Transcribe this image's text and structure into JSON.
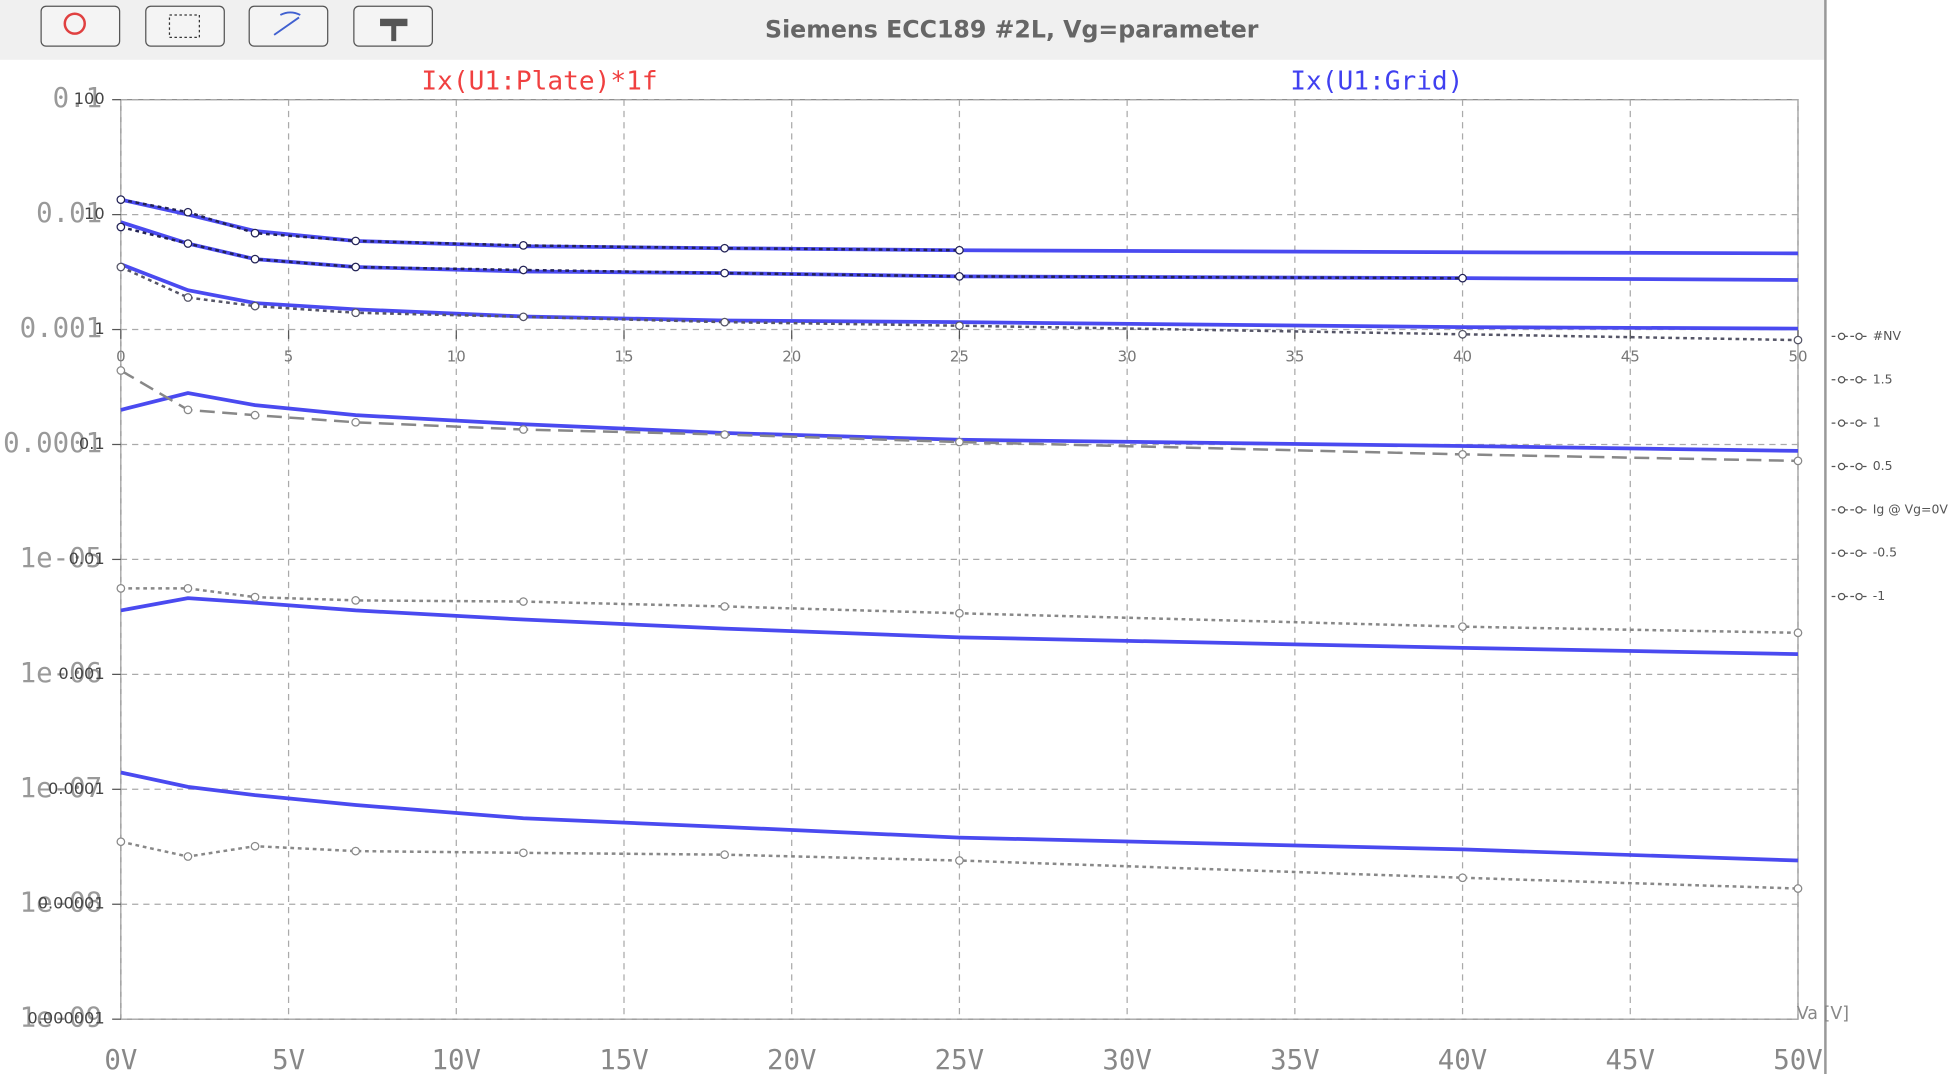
{
  "window": {
    "title": "Siemens ECC189 #2L, Vg=parameter"
  },
  "chart_data": {
    "type": "line",
    "trace_labels": [
      {
        "text": "Ix(U1:Plate)*1f",
        "color": "#f04040"
      },
      {
        "text": "Ix(U1:Grid)",
        "color": "#4040f0"
      }
    ],
    "x": [
      0,
      2,
      4,
      7,
      12,
      18,
      25,
      40,
      50
    ],
    "xlim": [
      0,
      50
    ],
    "xticks": [
      {
        "value": 0,
        "label": "0V"
      },
      {
        "value": 5,
        "label": "5V"
      },
      {
        "value": 10,
        "label": "10V"
      },
      {
        "value": 15,
        "label": "15V"
      },
      {
        "value": 20,
        "label": "20V"
      },
      {
        "value": 25,
        "label": "25V"
      },
      {
        "value": 30,
        "label": "30V"
      },
      {
        "value": 35,
        "label": "35V"
      },
      {
        "value": 40,
        "label": "40V"
      },
      {
        "value": 45,
        "label": "45V"
      },
      {
        "value": 50,
        "label": "50V"
      }
    ],
    "ylim": [
      1e-09,
      0.1
    ],
    "log_y": true,
    "yticks": [
      0.1,
      0.01,
      0.001,
      0.0001,
      {
        "value": 1e-05,
        "label": "1e-05"
      },
      {
        "value": 1e-06,
        "label": "1e-06"
      },
      {
        "value": 1e-07,
        "label": "1e-07"
      },
      {
        "value": 1e-08,
        "label": "1e-08"
      },
      {
        "value": 1e-09,
        "label": "1e-09"
      }
    ],
    "grid": true,
    "series": [
      {
        "color": "#4a4af0",
        "style": "solid",
        "values": [
          0.0135,
          0.01,
          0.0072,
          0.0059,
          0.0053,
          0.0051,
          0.0049,
          0.0047,
          0.0046
        ]
      },
      {
        "color": "#4a4af0",
        "style": "solid",
        "values": [
          0.0086,
          0.0056,
          0.0041,
          0.0035,
          0.0032,
          0.0031,
          0.0029,
          0.0028,
          0.0027
        ]
      },
      {
        "color": "#4a4af0",
        "style": "solid",
        "values": [
          0.0037,
          0.0022,
          0.0017,
          0.0015,
          0.0013,
          0.0012,
          0.00116,
          0.00105,
          0.00102
        ]
      },
      {
        "color": "#4a4af0",
        "style": "solid",
        "values": [
          0.0002,
          0.00028,
          0.00022,
          0.00018,
          0.00015,
          0.000126,
          0.00011,
          9.7e-05,
          8.8e-05
        ]
      },
      {
        "color": "#4a4af0",
        "style": "solid",
        "values": [
          3.6e-06,
          4.6e-06,
          4.2e-06,
          3.6e-06,
          3e-06,
          2.5e-06,
          2.1e-06,
          1.7e-06,
          1.5e-06
        ]
      },
      {
        "color": "#4a4af0",
        "style": "solid",
        "values": [
          1.4e-07,
          1.05e-07,
          8.9e-08,
          7.3e-08,
          5.6e-08,
          4.7e-08,
          3.8e-08,
          3e-08,
          2.4e-08
        ]
      },
      {
        "color": "#222255",
        "style": "dotted",
        "markers": true,
        "values": [
          0.0135,
          0.0105,
          0.0069,
          0.0059,
          0.0054,
          0.0051,
          0.0049,
          null,
          null
        ]
      },
      {
        "color": "#222255",
        "style": "dotted",
        "markers": true,
        "values": [
          0.0078,
          0.0056,
          0.0041,
          0.0035,
          0.0033,
          0.0031,
          0.0029,
          0.0028,
          null
        ]
      },
      {
        "color": "#555566",
        "style": "dotted",
        "markers": true,
        "values": [
          0.0035,
          0.0019,
          0.0016,
          0.0014,
          0.00129,
          0.00116,
          0.00108,
          0.00091,
          0.00081
        ]
      },
      {
        "color": "#888888",
        "style": "dashed",
        "markers": true,
        "values": [
          0.00044,
          0.0002,
          0.00018,
          0.000156,
          0.000135,
          0.000122,
          0.000105,
          8.2e-05,
          7.2e-05
        ]
      },
      {
        "color": "#888888",
        "style": "dotted",
        "markers": true,
        "values": [
          5.6e-06,
          5.6e-06,
          4.7e-06,
          4.4e-06,
          4.3e-06,
          3.9e-06,
          3.4e-06,
          2.6e-06,
          2.3e-06
        ]
      },
      {
        "color": "#888888",
        "style": "dotted",
        "markers": true,
        "values": [
          3.5e-08,
          2.6e-08,
          3.2e-08,
          2.9e-08,
          2.8e-08,
          2.7e-08,
          2.4e-08,
          1.7e-08,
          1.37e-08
        ]
      }
    ],
    "overlay": {
      "x_title": "Va [V]",
      "xlim": [
        0,
        50
      ],
      "xticks": [
        0,
        5,
        10,
        15,
        20,
        25,
        30,
        35,
        40,
        45,
        50
      ],
      "ylim": [
        1e-06,
        100
      ],
      "yticks": [
        100,
        10,
        1,
        0.1,
        0.01,
        0.001,
        0.0001,
        1e-05,
        1e-06
      ],
      "legend": [
        "#NV",
        "1.5",
        "1",
        "0.5",
        "Ig @ Vg=0V",
        "-0.5",
        "-1"
      ]
    }
  }
}
